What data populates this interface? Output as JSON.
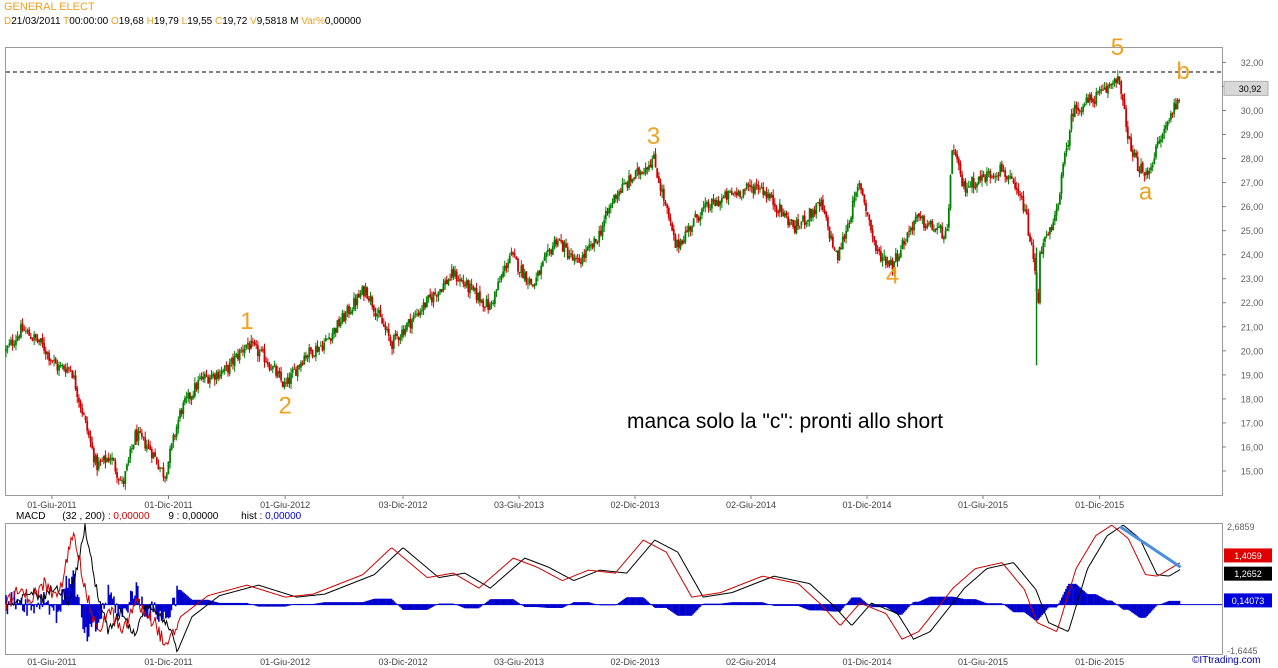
{
  "instrument": {
    "title": "GENERAL ELECT",
    "date_label": "D",
    "date": "21/03/2011",
    "time_label": "T",
    "time": "00:00:00",
    "open_label": "O",
    "open": "19,68",
    "high_label": "H",
    "high": "19,79",
    "low_label": "L",
    "low": "19,55",
    "close_label": "C",
    "close": "19,72",
    "volume_label": "V",
    "volume": "9,5818 M",
    "var_label": "Var%",
    "var": "0,00000"
  },
  "macd_header": {
    "name": "MACD",
    "params": "(32 , 200) :",
    "macd_value": "0,00000",
    "signal_label": "9 :",
    "signal_value": "0,00000",
    "hist_label": "hist :",
    "hist_value": "0,00000"
  },
  "watermark": "©ITtrading.com",
  "colors": {
    "up": "#008000",
    "down": "#cc0000",
    "wave_label": "#f0a020",
    "macd_line": "#cc0000",
    "signal_line": "#000000",
    "histogram": "#0000cc",
    "trend_arrow": "#4a8fe0"
  },
  "chart_data": [
    {
      "type": "candlestick",
      "title": "GENERAL ELECT",
      "x_ticks": [
        "01-Giu-2011",
        "01-Dic-2011",
        "01-Giu-2012",
        "03-Dic-2012",
        "03-Giu-2013",
        "02-Dic-2013",
        "02-Giu-2014",
        "01-Dic-2014",
        "01-Giu-2015",
        "01-Dic-2015"
      ],
      "y_ticks": [
        "15,00",
        "16,00",
        "17,00",
        "18,00",
        "19,00",
        "20,00",
        "21,00",
        "22,00",
        "23,00",
        "24,00",
        "25,00",
        "26,00",
        "27,00",
        "28,00",
        "29,00",
        "30,00",
        "31,00",
        "32,00"
      ],
      "ylim": [
        14.0,
        32.6
      ],
      "last_price": 30.92,
      "last_price_label": "30,92",
      "resistance_level": 31.6,
      "price_path": [
        [
          "2011-03-21",
          20.0
        ],
        [
          "2011-04-15",
          20.9
        ],
        [
          "2011-05-15",
          20.3
        ],
        [
          "2011-06-10",
          19.3
        ],
        [
          "2011-07-01",
          19.3
        ],
        [
          "2011-08-10",
          15.2
        ],
        [
          "2011-09-01",
          15.6
        ],
        [
          "2011-09-20",
          14.4
        ],
        [
          "2011-10-10",
          16.5
        ],
        [
          "2011-11-01",
          16.0
        ],
        [
          "2011-11-25",
          14.8
        ],
        [
          "2011-12-20",
          17.5
        ],
        [
          "2012-01-20",
          18.8
        ],
        [
          "2012-03-01",
          19.2
        ],
        [
          "2012-04-02",
          20.3
        ],
        [
          "2012-05-01",
          19.7
        ],
        [
          "2012-06-01",
          18.5
        ],
        [
          "2012-07-01",
          19.8
        ],
        [
          "2012-08-01",
          20.3
        ],
        [
          "2012-10-05",
          22.6
        ],
        [
          "2012-11-15",
          20.3
        ],
        [
          "2013-01-02",
          21.8
        ],
        [
          "2013-02-20",
          23.2
        ],
        [
          "2013-04-18",
          21.8
        ],
        [
          "2013-05-20",
          24.0
        ],
        [
          "2013-06-25",
          22.7
        ],
        [
          "2013-08-01",
          24.7
        ],
        [
          "2013-09-01",
          23.6
        ],
        [
          "2013-10-01",
          24.5
        ],
        [
          "2013-11-01",
          26.5
        ],
        [
          "2013-12-31",
          28.0
        ],
        [
          "2014-02-04",
          24.3
        ],
        [
          "2014-03-15",
          25.8
        ],
        [
          "2014-05-01",
          26.5
        ],
        [
          "2014-06-15",
          26.9
        ],
        [
          "2014-08-10",
          25.1
        ],
        [
          "2014-09-20",
          26.1
        ],
        [
          "2014-10-15",
          23.8
        ],
        [
          "2014-11-20",
          27.0
        ],
        [
          "2014-12-16",
          24.1
        ],
        [
          "2015-01-10",
          23.6
        ],
        [
          "2015-02-15",
          25.5
        ],
        [
          "2015-04-07",
          24.8
        ],
        [
          "2015-04-13",
          28.6
        ],
        [
          "2015-05-01",
          26.8
        ],
        [
          "2015-07-01",
          27.6
        ],
        [
          "2015-08-05",
          26.0
        ],
        [
          "2015-08-24",
          23.0
        ],
        [
          "2015-08-25",
          19.4
        ],
        [
          "2015-08-28",
          24.1
        ],
        [
          "2015-09-20",
          25.2
        ],
        [
          "2015-10-20",
          30.0
        ],
        [
          "2015-12-10",
          30.8
        ],
        [
          "2015-12-29",
          31.5
        ],
        [
          "2016-01-20",
          28.2
        ],
        [
          "2016-02-11",
          27.2
        ],
        [
          "2016-03-01",
          28.5
        ],
        [
          "2016-04-06",
          30.8
        ]
      ],
      "annotations": [
        {
          "text": "1",
          "date": "2012-04-02",
          "price": 20.9
        },
        {
          "text": "2",
          "date": "2012-06-01",
          "price": 17.4
        },
        {
          "text": "3",
          "date": "2013-12-31",
          "price": 28.6
        },
        {
          "text": "4",
          "date": "2015-01-10",
          "price": 22.8
        },
        {
          "text": "5",
          "date": "2015-12-29",
          "price": 32.3
        },
        {
          "text": "a",
          "date": "2016-02-11",
          "price": 26.3
        },
        {
          "text": "b",
          "date": "2016-04-10",
          "price": 31.3
        }
      ],
      "comment": "manca solo la \"c\": pronti allo short"
    },
    {
      "type": "line",
      "title": "MACD",
      "x_ticks": [
        "01-Giu-2011",
        "01-Dic-2011",
        "01-Giu-2012",
        "03-Dic-2012",
        "03-Giu-2013",
        "02-Dic-2013",
        "02-Giu-2014",
        "01-Dic-2014",
        "01-Giu-2015",
        "01-Dic-2015"
      ],
      "y_ticks": [
        "-1,6445",
        "2,6859"
      ],
      "ylim": [
        -1.6445,
        2.6859
      ],
      "series": [
        {
          "name": "MACD",
          "points": [
            [
              "2011-03-21",
              0.0
            ],
            [
              "2011-04-10",
              0.45
            ],
            [
              "2011-05-01",
              0.2
            ],
            [
              "2011-05-20",
              0.7
            ],
            [
              "2011-06-10",
              0.1
            ],
            [
              "2011-06-25",
              1.5
            ],
            [
              "2011-07-05",
              2.6
            ],
            [
              "2011-07-20",
              0.8
            ],
            [
              "2011-08-10",
              -0.9
            ],
            [
              "2011-09-01",
              -0.2
            ],
            [
              "2011-09-20",
              -1.0
            ],
            [
              "2011-10-10",
              0.1
            ],
            [
              "2011-11-10",
              -0.6
            ],
            [
              "2011-11-28",
              -1.5
            ],
            [
              "2011-12-20",
              -0.4
            ],
            [
              "2012-02-01",
              0.3
            ],
            [
              "2012-04-02",
              0.65
            ],
            [
              "2012-06-01",
              0.25
            ],
            [
              "2012-07-15",
              0.35
            ],
            [
              "2012-10-01",
              1.0
            ],
            [
              "2012-11-15",
              1.9
            ],
            [
              "2013-01-10",
              0.9
            ],
            [
              "2013-02-20",
              1.05
            ],
            [
              "2013-04-01",
              0.55
            ],
            [
              "2013-05-25",
              1.55
            ],
            [
              "2013-07-01",
              1.25
            ],
            [
              "2013-08-10",
              0.8
            ],
            [
              "2013-09-20",
              1.15
            ],
            [
              "2013-11-01",
              1.05
            ],
            [
              "2013-12-15",
              2.15
            ],
            [
              "2014-01-20",
              1.75
            ],
            [
              "2014-03-01",
              0.25
            ],
            [
              "2014-04-15",
              0.4
            ],
            [
              "2014-06-20",
              0.95
            ],
            [
              "2014-08-15",
              0.7
            ],
            [
              "2014-09-20",
              0.0
            ],
            [
              "2014-10-20",
              -0.7
            ],
            [
              "2014-11-20",
              0.05
            ],
            [
              "2014-12-31",
              -0.3
            ],
            [
              "2015-01-25",
              -1.15
            ],
            [
              "2015-02-20",
              -0.9
            ],
            [
              "2015-04-15",
              0.55
            ],
            [
              "2015-05-20",
              1.2
            ],
            [
              "2015-07-01",
              1.4
            ],
            [
              "2015-08-05",
              0.5
            ],
            [
              "2015-08-25",
              -0.6
            ],
            [
              "2015-09-25",
              -0.9
            ],
            [
              "2015-10-25",
              1.2
            ],
            [
              "2015-11-25",
              2.3
            ],
            [
              "2015-12-20",
              2.65
            ],
            [
              "2016-01-15",
              2.2
            ],
            [
              "2016-02-11",
              1.0
            ],
            [
              "2016-03-01",
              0.95
            ],
            [
              "2016-04-06",
              1.4059
            ]
          ]
        },
        {
          "name": "9",
          "lag_days": 18,
          "last_value": 1.2652
        },
        {
          "name": "hist",
          "type": "histogram",
          "last_value": 0.14073
        }
      ],
      "value_labels": [
        "1,4059",
        "1,2652",
        "0,14073"
      ]
    }
  ]
}
